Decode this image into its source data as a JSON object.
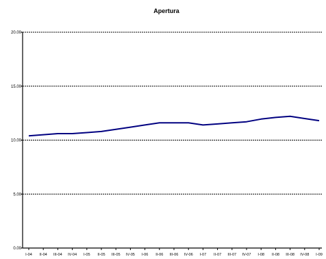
{
  "chart_data": {
    "type": "line",
    "title": "Apertura",
    "xlabel": "",
    "ylabel": "",
    "categories": [
      "I-04",
      "II-04",
      "III-04",
      "IV-04",
      "I-05",
      "II-05",
      "III-05",
      "IV-05",
      "I-06",
      "II-06",
      "III-06",
      "IV-06",
      "I-07",
      "II-07",
      "III-07",
      "IV-07",
      "I-08",
      "II-08",
      "III-08",
      "IV-08",
      "I-09"
    ],
    "series": [
      {
        "values": [
          10.4,
          10.5,
          10.6,
          10.6,
          10.7,
          10.8,
          11.0,
          11.2,
          11.4,
          11.6,
          11.6,
          11.6,
          11.4,
          11.5,
          11.6,
          11.7,
          11.95,
          12.1,
          12.2,
          12.0,
          11.8
        ]
      }
    ],
    "ylim": [
      0,
      20
    ],
    "yticks": [
      "0.00",
      "5.00",
      "10.00",
      "15.00",
      "20.00"
    ],
    "ytick_values": [
      0,
      5,
      10,
      15,
      20
    ],
    "grid": true,
    "gridline_style": "dashed",
    "colors": {
      "line": "#000080",
      "grid": "#000000",
      "axis": "#000000"
    }
  }
}
